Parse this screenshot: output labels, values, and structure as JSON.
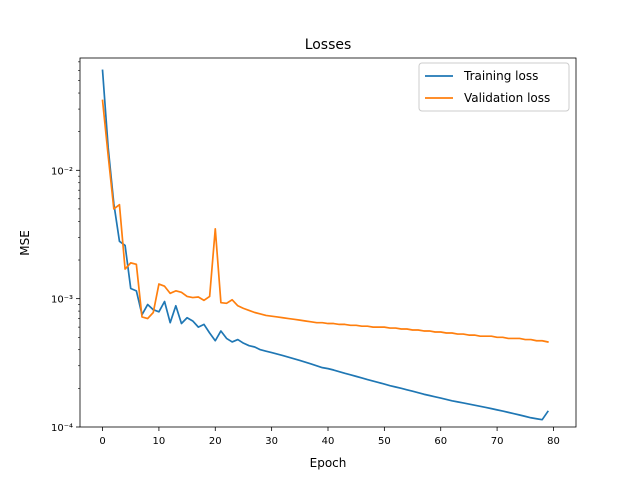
{
  "chart_data": {
    "type": "line",
    "title": "Losses",
    "xlabel": "Epoch",
    "ylabel": "MSE",
    "xlim": [
      -4,
      84
    ],
    "ylim": [
      0.0001,
      0.075
    ],
    "yscale": "log",
    "grid": false,
    "legend_position": "top-right",
    "x_ticks": [
      0,
      10,
      20,
      30,
      40,
      50,
      60,
      70,
      80
    ],
    "x_tick_labels": [
      "0",
      "10",
      "20",
      "30",
      "40",
      "50",
      "60",
      "70",
      "80"
    ],
    "y_ticks": [
      0.01,
      0.001,
      0.0001
    ],
    "y_tick_labels": [
      "10⁻²",
      "10⁻³",
      "10⁻⁴"
    ],
    "x": [
      0,
      1,
      2,
      3,
      4,
      5,
      6,
      7,
      8,
      9,
      10,
      11,
      12,
      13,
      14,
      15,
      16,
      17,
      18,
      19,
      20,
      21,
      22,
      23,
      24,
      25,
      26,
      27,
      28,
      29,
      30,
      31,
      32,
      33,
      34,
      35,
      36,
      37,
      38,
      39,
      40,
      41,
      42,
      43,
      44,
      45,
      46,
      47,
      48,
      49,
      50,
      51,
      52,
      53,
      54,
      55,
      56,
      57,
      58,
      59,
      60,
      61,
      62,
      63,
      64,
      65,
      66,
      67,
      68,
      69,
      70,
      71,
      72,
      73,
      74,
      75,
      76,
      77,
      78,
      79
    ],
    "series": [
      {
        "name": "Training loss",
        "color": "#1f77b4",
        "values": [
          0.06,
          0.015,
          0.0055,
          0.0028,
          0.0026,
          0.0012,
          0.00115,
          0.00075,
          0.0009,
          0.00082,
          0.00079,
          0.00095,
          0.00065,
          0.00088,
          0.00064,
          0.00071,
          0.00067,
          0.0006,
          0.00063,
          0.00054,
          0.00047,
          0.00056,
          0.00049,
          0.00046,
          0.00048,
          0.00045,
          0.00043,
          0.00042,
          0.0004,
          0.00039,
          0.00038,
          0.00037,
          0.00036,
          0.00035,
          0.00034,
          0.00033,
          0.00032,
          0.00031,
          0.0003,
          0.00029,
          0.000285,
          0.000278,
          0.00027,
          0.000262,
          0.000255,
          0.000248,
          0.000241,
          0.000234,
          0.000228,
          0.000222,
          0.000216,
          0.00021,
          0.000205,
          0.0002,
          0.000195,
          0.00019,
          0.000185,
          0.00018,
          0.000176,
          0.000172,
          0.000168,
          0.000164,
          0.00016,
          0.000157,
          0.000154,
          0.000151,
          0.000148,
          0.000145,
          0.000142,
          0.000139,
          0.000136,
          0.000133,
          0.00013,
          0.000127,
          0.000124,
          0.000121,
          0.000118,
          0.000116,
          0.000114,
          0.000132
        ]
      },
      {
        "name": "Validation loss",
        "color": "#ff7f0e",
        "values": [
          0.035,
          0.013,
          0.005,
          0.0054,
          0.0017,
          0.0019,
          0.00185,
          0.00072,
          0.0007,
          0.00078,
          0.0013,
          0.00125,
          0.0011,
          0.00115,
          0.00112,
          0.00104,
          0.00102,
          0.00103,
          0.00097,
          0.00104,
          0.0035,
          0.00093,
          0.00092,
          0.00098,
          0.00088,
          0.00084,
          0.00081,
          0.00078,
          0.00076,
          0.00074,
          0.00073,
          0.00072,
          0.00071,
          0.0007,
          0.00069,
          0.00068,
          0.00067,
          0.00066,
          0.00065,
          0.00065,
          0.00064,
          0.00064,
          0.00063,
          0.00063,
          0.00062,
          0.00062,
          0.00061,
          0.00061,
          0.0006,
          0.0006,
          0.0006,
          0.00059,
          0.00059,
          0.00058,
          0.00058,
          0.00057,
          0.00057,
          0.00056,
          0.00056,
          0.00055,
          0.00055,
          0.00054,
          0.00054,
          0.00053,
          0.00053,
          0.00052,
          0.00052,
          0.00051,
          0.00051,
          0.00051,
          0.0005,
          0.0005,
          0.00049,
          0.00049,
          0.00049,
          0.00048,
          0.00048,
          0.00047,
          0.00047,
          0.00046
        ]
      }
    ]
  }
}
